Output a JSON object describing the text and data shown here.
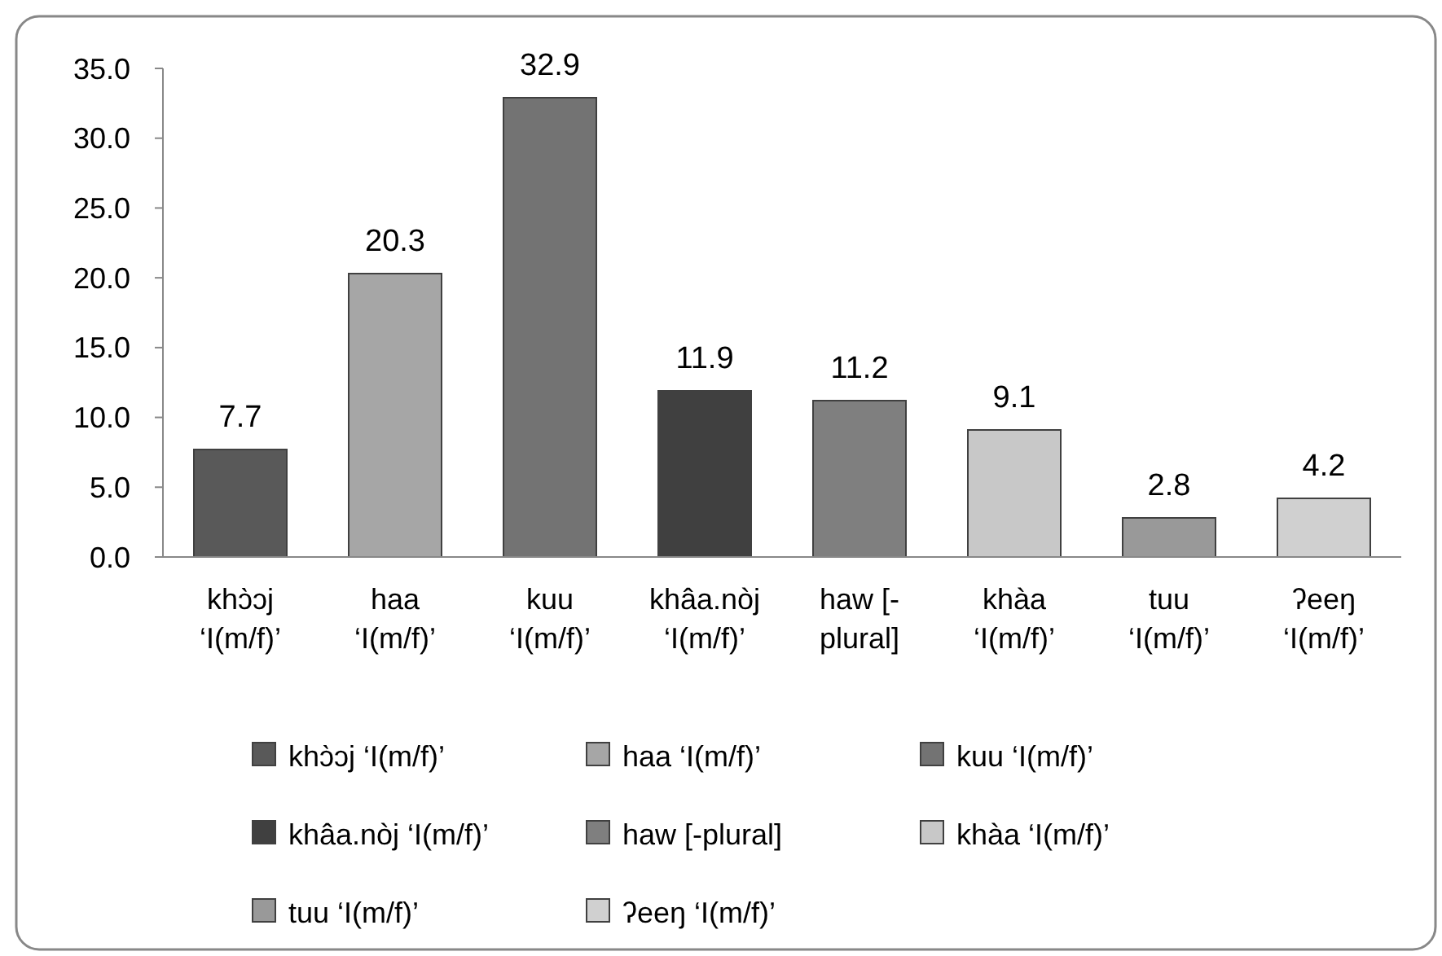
{
  "chart_data": {
    "type": "bar",
    "categories": [
      "khɔ̀ɔj ‘I(m/f)’",
      "haa ‘I(m/f)’",
      "kuu ‘I(m/f)’",
      "khâa.nòj ‘I(m/f)’",
      "haw [-plural]",
      "khàa ‘I(m/f)’",
      "tuu ‘I(m/f)’",
      "ʔeeŋ ‘I(m/f)’"
    ],
    "series": [
      {
        "name": "khɔ̀ɔj ‘I(m/f)’",
        "color": "#595959",
        "values": [
          7.7,
          null,
          null,
          null,
          null,
          null,
          null,
          null
        ]
      },
      {
        "name": "haa ‘I(m/f)’",
        "color": "#a6a6a6",
        "values": [
          null,
          20.3,
          null,
          null,
          null,
          null,
          null,
          null
        ]
      },
      {
        "name": "kuu ‘I(m/f)’",
        "color": "#737373",
        "values": [
          null,
          null,
          32.9,
          null,
          null,
          null,
          null,
          null
        ]
      },
      {
        "name": "khâa.nòj ‘I(m/f)’",
        "color": "#404040",
        "values": [
          null,
          null,
          null,
          11.9,
          null,
          null,
          null,
          null
        ]
      },
      {
        "name": "haw [-plural]",
        "color": "#7f7f7f",
        "values": [
          null,
          null,
          null,
          null,
          11.2,
          null,
          null,
          null
        ]
      },
      {
        "name": "khàa ‘I(m/f)’",
        "color": "#c8c8c8",
        "values": [
          null,
          null,
          null,
          null,
          null,
          9.1,
          null,
          null
        ]
      },
      {
        "name": "tuu ‘I(m/f)’",
        "color": "#999999",
        "values": [
          null,
          null,
          null,
          null,
          null,
          null,
          2.8,
          null
        ]
      },
      {
        "name": "ʔeeŋ ‘I(m/f)’",
        "color": "#d0d0d0",
        "values": [
          null,
          null,
          null,
          null,
          null,
          null,
          null,
          4.2
        ]
      }
    ],
    "stacked": true,
    "ylim": [
      0,
      35
    ],
    "yticks": [
      {
        "value": 0,
        "label": "0.0"
      },
      {
        "value": 5,
        "label": "5.0"
      },
      {
        "value": 10,
        "label": "10.0"
      },
      {
        "value": 15,
        "label": "15.0"
      },
      {
        "value": 20,
        "label": "20.0"
      },
      {
        "value": 25,
        "label": "25.0"
      },
      {
        "value": 30,
        "label": "30.0"
      },
      {
        "value": 35,
        "label": "35.0"
      }
    ],
    "data_labels": true,
    "legend": "bottom"
  }
}
